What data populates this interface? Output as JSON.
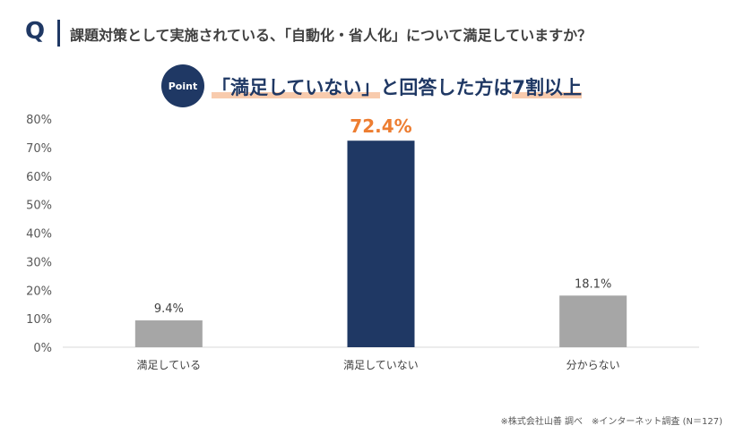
{
  "header": {
    "q_label": "Q",
    "question": "課題対策として実施されている、「自動化・省人化」について満足していますか？"
  },
  "point": {
    "badge": "Point",
    "headline_hl1": "「満足していない」",
    "headline_mid": "と回答した方は",
    "headline_hl2": "7割以上"
  },
  "chart_data": {
    "type": "bar",
    "categories": [
      "満足している",
      "満足していない",
      "分からない"
    ],
    "values": [
      9.4,
      72.4,
      18.1
    ],
    "data_labels": [
      "9.4%",
      "72.4%",
      "18.1%"
    ],
    "ylim": [
      0,
      80
    ],
    "yticks": [
      "0%",
      "10%",
      "20%",
      "30%",
      "40%",
      "50%",
      "60%",
      "70%",
      "80%"
    ],
    "grid": false,
    "colors": [
      "#a6a6a6",
      "#1f3864",
      "#a6a6a6"
    ],
    "highlight_label_color": "#ed7d31"
  },
  "footer": {
    "note": "※株式会社山善 調べ　※インターネット調査 (N＝127)"
  }
}
